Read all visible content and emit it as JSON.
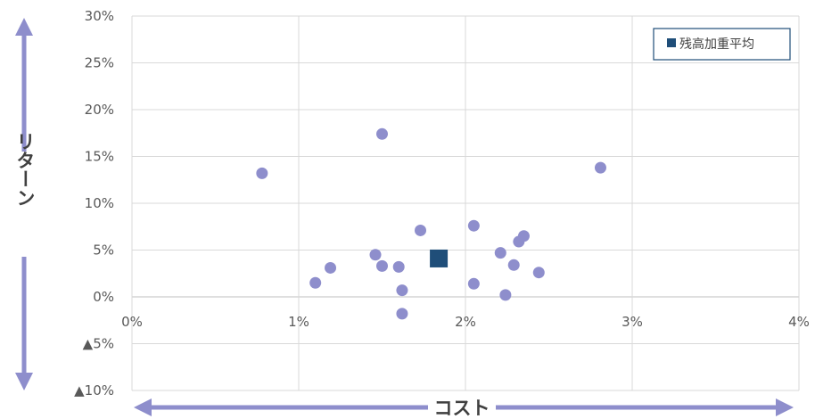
{
  "chart_data": {
    "type": "scatter",
    "xlabel": "コスト",
    "ylabel": "リターン",
    "xlim": [
      0,
      4
    ],
    "ylim": [
      -10,
      30
    ],
    "x_ticks": [
      {
        "value": 0,
        "label": "0%"
      },
      {
        "value": 1,
        "label": "1%"
      },
      {
        "value": 2,
        "label": "2%"
      },
      {
        "value": 3,
        "label": "3%"
      },
      {
        "value": 4,
        "label": "4%"
      }
    ],
    "y_ticks": [
      {
        "value": 30,
        "label": "30%"
      },
      {
        "value": 25,
        "label": "25%"
      },
      {
        "value": 20,
        "label": "20%"
      },
      {
        "value": 15,
        "label": "15%"
      },
      {
        "value": 10,
        "label": "10%"
      },
      {
        "value": 5,
        "label": "5%"
      },
      {
        "value": 0,
        "label": "0%"
      },
      {
        "value": -5,
        "label": "▲5%"
      },
      {
        "value": -10,
        "label": "▲10%"
      }
    ],
    "grid": true,
    "legend": {
      "position": "top-right"
    },
    "series": [
      {
        "name": "",
        "color": "#8e8ecc",
        "marker": "circle",
        "points": [
          {
            "x": 0.78,
            "y": 13.2
          },
          {
            "x": 1.1,
            "y": 1.5
          },
          {
            "x": 1.19,
            "y": 3.1
          },
          {
            "x": 1.46,
            "y": 4.5
          },
          {
            "x": 1.5,
            "y": 3.3
          },
          {
            "x": 1.5,
            "y": 17.4
          },
          {
            "x": 1.6,
            "y": 3.2
          },
          {
            "x": 1.62,
            "y": 0.7
          },
          {
            "x": 1.62,
            "y": -1.8
          },
          {
            "x": 1.73,
            "y": 7.1
          },
          {
            "x": 2.05,
            "y": 7.6
          },
          {
            "x": 2.05,
            "y": 1.4
          },
          {
            "x": 2.21,
            "y": 4.7
          },
          {
            "x": 2.24,
            "y": 0.2
          },
          {
            "x": 2.29,
            "y": 3.4
          },
          {
            "x": 2.32,
            "y": 5.9
          },
          {
            "x": 2.35,
            "y": 6.5
          },
          {
            "x": 2.44,
            "y": 2.6
          },
          {
            "x": 2.81,
            "y": 13.8
          }
        ]
      },
      {
        "name": "残高加重平均",
        "color": "#1f4e79",
        "marker": "square",
        "points": [
          {
            "x": 1.84,
            "y": 4.1
          }
        ]
      }
    ]
  }
}
